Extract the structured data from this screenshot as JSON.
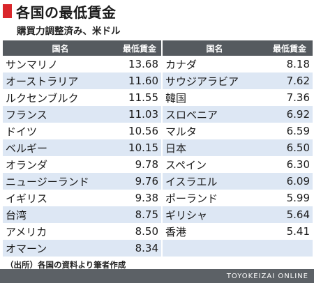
{
  "chart_data": {
    "type": "table",
    "title": "各国の最低賃金",
    "subtitle": "購買力調整済み、米ドル",
    "columns": [
      "国名",
      "最低賃金",
      "国名",
      "最低賃金"
    ],
    "rows": [
      {
        "country": "サンマリノ",
        "wage": "13.68"
      },
      {
        "country": "オーストラリア",
        "wage": "11.60"
      },
      {
        "country": "ルクセンブルク",
        "wage": "11.55"
      },
      {
        "country": "フランス",
        "wage": "11.03"
      },
      {
        "country": "ドイツ",
        "wage": "10.56"
      },
      {
        "country": "ベルギー",
        "wage": "10.15"
      },
      {
        "country": "オランダ",
        "wage": "9.78"
      },
      {
        "country": "ニュージーランド",
        "wage": "9.76"
      },
      {
        "country": "イギリス",
        "wage": "9.38"
      },
      {
        "country": "台湾",
        "wage": "8.75"
      },
      {
        "country": "アメリカ",
        "wage": "8.50"
      },
      {
        "country": "オマーン",
        "wage": "8.34"
      },
      {
        "country": "カナダ",
        "wage": "8.18"
      },
      {
        "country": "サウジアラビア",
        "wage": "7.62"
      },
      {
        "country": "韓国",
        "wage": "7.36"
      },
      {
        "country": "スロベニア",
        "wage": "6.92"
      },
      {
        "country": "マルタ",
        "wage": "6.59"
      },
      {
        "country": "日本",
        "wage": "6.50"
      },
      {
        "country": "スペイン",
        "wage": "6.30"
      },
      {
        "country": "イスラエル",
        "wage": "6.09"
      },
      {
        "country": "ポーランド",
        "wage": "5.99"
      },
      {
        "country": "ギリシャ",
        "wage": "5.64"
      },
      {
        "country": "香港",
        "wage": "5.41"
      }
    ]
  },
  "source": "（出所）各国の資料より筆者作成",
  "footer": "TOYOKEIZAI ONLINE",
  "colors": {
    "accent": "#d9262b",
    "header_bg": "#555a5f",
    "stripe": "#dde7f4",
    "footer_bg": "#5c6166"
  }
}
